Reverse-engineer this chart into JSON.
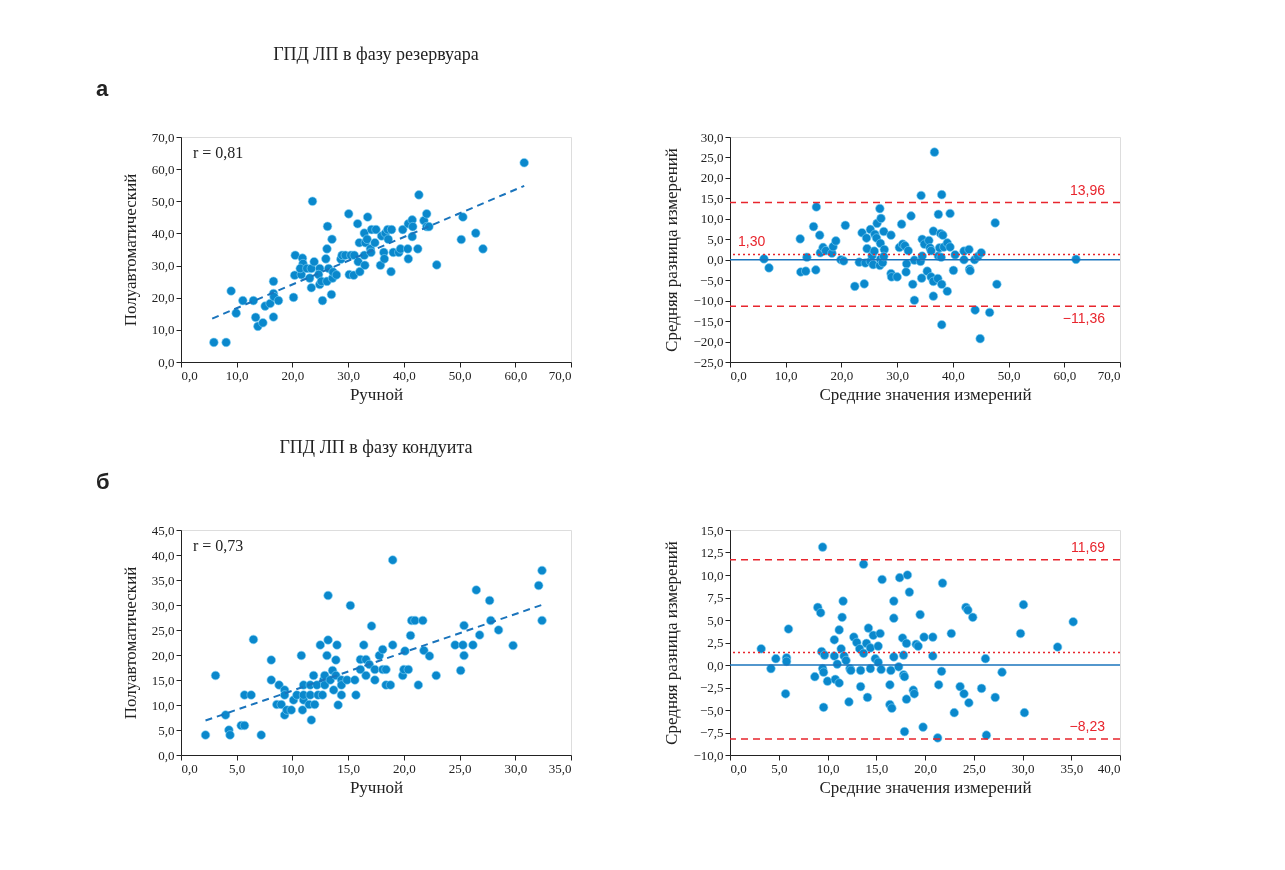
{
  "chart_data": [
    {
      "type": "scatter",
      "title": "ГПД ЛП в фазу резервуара",
      "xlabel": "Ручной",
      "ylabel": "Полуавтоматический",
      "annotations": [
        "а",
        "r = 0,81"
      ],
      "marker": "circle",
      "xlim": [
        0,
        70
      ],
      "ylim": [
        0,
        70
      ],
      "xticks": [
        {
          "value": 0,
          "label": "0,0"
        },
        {
          "value": 10,
          "label": "10,0"
        },
        {
          "value": 20,
          "label": "20,0"
        },
        {
          "value": 30,
          "label": "30,0"
        },
        {
          "value": 40,
          "label": "40,0"
        },
        {
          "value": 50,
          "label": "50,0"
        },
        {
          "value": 60,
          "label": "60,0"
        },
        {
          "value": 70,
          "label": "70,0"
        }
      ],
      "yticks": [
        {
          "value": 0,
          "label": "0,0"
        },
        {
          "value": 10,
          "label": "10,0"
        },
        {
          "value": 20,
          "label": "20,0"
        },
        {
          "value": 30,
          "label": "30,0"
        },
        {
          "value": 40,
          "label": "40,0"
        },
        {
          "value": 50,
          "label": "50,0"
        },
        {
          "value": 60,
          "label": "60,0"
        },
        {
          "value": 70,
          "label": "70,0"
        }
      ],
      "series": [
        {
          "color": "#0a88cc",
          "x": [
            5.9,
            8.1,
            9.0,
            9.9,
            11.1,
            13.0,
            13.4,
            13.8,
            14.7,
            15.1,
            16.0,
            16.6,
            16.6,
            16.7,
            16.6,
            17.5,
            20.2,
            20.5,
            20.4,
            21.8,
            21.9,
            21.6,
            21.4,
            22.6,
            23.4,
            23.1,
            23.4,
            23.6,
            23.9,
            24.9,
            24.7,
            24.9,
            25.2,
            25.4,
            26.0,
            26.2,
            26.3,
            26.2,
            26.5,
            27.1,
            27.0,
            27.2,
            27.3,
            27.9,
            28.7,
            28.9,
            29.5,
            30.1,
            30.2,
            30.5,
            31.1,
            31.0,
            31.7,
            31.8,
            32.0,
            32.1,
            32.9,
            32.9,
            33.0,
            33.1,
            33.5,
            33.4,
            34.0,
            34.1,
            34.2,
            34.8,
            35.0,
            35.8,
            36.0,
            36.4,
            36.5,
            36.7,
            37.1,
            37.2,
            37.8,
            37.7,
            38.1,
            39.1,
            39.4,
            39.8,
            40.8,
            40.7,
            40.8,
            41.5,
            41.6,
            41.5,
            42.5,
            42.7,
            43.6,
            44.1,
            44.1,
            44.5,
            45.9,
            50.3,
            50.6,
            52.9,
            54.2,
            61.6
          ],
          "values": [
            6.1,
            6.1,
            22.1,
            15.2,
            19.1,
            19.1,
            13.9,
            11.1,
            12.2,
            17.4,
            18.2,
            25.1,
            21.3,
            20.3,
            14.0,
            19.1,
            20.1,
            33.2,
            27.0,
            32.3,
            30.6,
            27.2,
            29.1,
            29.1,
            29.1,
            26.1,
            23.1,
            50.0,
            31.2,
            29.1,
            27.2,
            24.1,
            25.1,
            19.1,
            32.1,
            35.2,
            42.2,
            25.1,
            29.1,
            38.2,
            21.0,
            26.1,
            28.0,
            27.1,
            32.0,
            33.2,
            33.2,
            46.1,
            27.2,
            33.2,
            33.2,
            27.0,
            43.0,
            31.2,
            37.1,
            28.1,
            40.1,
            33.2,
            30.1,
            37.1,
            45.1,
            38.2,
            35.2,
            34.1,
            41.2,
            37.1,
            41.2,
            30.1,
            39.2,
            34.1,
            32.1,
            40.1,
            41.2,
            38.2,
            41.2,
            28.1,
            34.1,
            34.1,
            35.2,
            41.2,
            43.0,
            35.2,
            32.1,
            44.2,
            42.1,
            39.0,
            35.2,
            52.0,
            44.0,
            46.1,
            42.1,
            42.1,
            30.2,
            38.1,
            45.1,
            40.1,
            35.2,
            62.0
          ]
        },
        {
          "type": "line",
          "line_style": "dashed",
          "marker": "none",
          "color": "#1a74bc",
          "x": [
            5.6,
            61.6
          ],
          "values": [
            13.5,
            54.8
          ]
        }
      ]
    },
    {
      "type": "scatter",
      "xlabel": "Средние значения измерений",
      "ylabel": "Средняя разница измерений",
      "marker": "circle",
      "xlim": [
        0,
        70
      ],
      "ylim": [
        -25,
        30
      ],
      "xticks": [
        {
          "value": 0,
          "label": "0,0"
        },
        {
          "value": 10,
          "label": "10,0"
        },
        {
          "value": 20,
          "label": "20,0"
        },
        {
          "value": 30,
          "label": "30,0"
        },
        {
          "value": 40,
          "label": "40,0"
        },
        {
          "value": 50,
          "label": "50,0"
        },
        {
          "value": 60,
          "label": "60,0"
        },
        {
          "value": 70,
          "label": "70,0"
        }
      ],
      "yticks": [
        {
          "value": -25,
          "label": "−25,0"
        },
        {
          "value": -20,
          "label": "−20,0"
        },
        {
          "value": -15,
          "label": "−15,0"
        },
        {
          "value": -10,
          "label": "−10,0"
        },
        {
          "value": -5,
          "label": "−5,0"
        },
        {
          "value": 0,
          "label": "0,0"
        },
        {
          "value": 5,
          "label": "5,0"
        },
        {
          "value": 10,
          "label": "10,0"
        },
        {
          "value": 15,
          "label": "15,0"
        },
        {
          "value": 20,
          "label": "20,0"
        },
        {
          "value": 25,
          "label": "25,0"
        },
        {
          "value": 30,
          "label": "30,0"
        }
      ],
      "series": [
        {
          "color": "#0a88cc",
          "x": [
            6.1,
            7.0,
            12.6,
            12.7,
            13.6,
            13.8,
            15.0,
            15.4,
            15.5,
            16.1,
            16.2,
            16.7,
            17.2,
            18.3,
            18.5,
            19.0,
            19.9,
            20.4,
            20.7,
            22.4,
            23.2,
            23.7,
            24.1,
            24.3,
            24.5,
            24.6,
            25.2,
            25.2,
            25.5,
            25.7,
            25.9,
            26.0,
            26.3,
            26.4,
            26.9,
            26.9,
            27.0,
            27.1,
            27.0,
            27.4,
            27.6,
            27.7,
            27.6,
            28.9,
            28.9,
            29.0,
            30.0,
            30.4,
            30.8,
            31.0,
            31.4,
            31.7,
            31.6,
            32.0,
            32.5,
            32.8,
            33.1,
            33.1,
            34.2,
            34.3,
            34.4,
            34.5,
            34.5,
            34.9,
            35.4,
            35.7,
            35.9,
            36.1,
            36.1,
            36.5,
            36.5,
            36.5,
            36.7,
            37.3,
            37.4,
            37.4,
            37.6,
            37.8,
            37.9,
            38.0,
            38.0,
            38.0,
            38.2,
            38.4,
            39.0,
            39.0,
            39.5,
            39.5,
            40.1,
            40.4,
            42.0,
            42.0,
            42.9,
            43.0,
            43.1,
            43.9,
            44.0,
            44.5,
            45.1,
            44.9,
            46.6,
            47.6,
            47.9,
            62.1
          ],
          "values": [
            0.2,
            -2.0,
            5.1,
            -3.0,
            -2.8,
            0.6,
            8.1,
            -2.5,
            12.9,
            6.0,
            1.7,
            3.0,
            2.2,
            1.6,
            3.2,
            4.6,
            0.0,
            -0.3,
            8.4,
            -6.5,
            -0.6,
            6.6,
            -5.9,
            -0.8,
            5.3,
            2.7,
            7.4,
            -0.4,
            1.0,
            -1.2,
            2.1,
            6.2,
            5.3,
            8.9,
            12.5,
            -1.4,
            4.0,
            10.1,
            0.1,
            -0.7,
            6.9,
            2.5,
            0.8,
            6.0,
            -3.4,
            -4.2,
            -4.2,
            3.0,
            8.7,
            3.8,
            3.4,
            -1.0,
            -3.0,
            2.2,
            10.7,
            -6.0,
            -0.1,
            -9.9,
            -0.4,
            15.7,
            -4.5,
            5.0,
            0.9,
            3.8,
            -2.8,
            4.7,
            2.9,
            2.2,
            -4.2,
            7.0,
            -8.9,
            -5.3,
            26.3,
            -4.6,
            11.1,
            0.9,
            2.9,
            6.4,
            0.6,
            15.9,
            -6.0,
            -15.9,
            6.0,
            3.1,
            4.1,
            -7.7,
            11.3,
            3.1,
            -2.6,
            1.2,
            0.0,
            2.1,
            2.5,
            -2.3,
            -2.7,
            0.0,
            -12.3,
            0.8,
            1.7,
            -19.3,
            -12.9,
            9.0,
            -6.0,
            0.1
          ]
        }
      ],
      "ref_lines": [
        {
          "axis": "y",
          "value": 13.96,
          "label": "13,96",
          "color": "#e8252d",
          "line_style": "dashed"
        },
        {
          "axis": "y",
          "value": 1.3,
          "label": "1,30",
          "color": "#e8252d",
          "line_style": "dotted"
        },
        {
          "axis": "y",
          "value": 0,
          "label": null,
          "color": "#1a74bc",
          "line_style": "solid"
        },
        {
          "axis": "y",
          "value": -11.36,
          "label": "−11,36",
          "color": "#e8252d",
          "line_style": "dashed"
        }
      ]
    },
    {
      "type": "scatter",
      "title": "ГПД ЛП в фазу кондуита",
      "xlabel": "Ручной",
      "ylabel": "Полуавтоматический",
      "annotations": [
        "б",
        "r = 0,73"
      ],
      "marker": "circle",
      "xlim": [
        0,
        35
      ],
      "ylim": [
        0,
        45
      ],
      "xticks": [
        {
          "value": 0,
          "label": "0,0"
        },
        {
          "value": 5,
          "label": "5,0"
        },
        {
          "value": 10,
          "label": "10,0"
        },
        {
          "value": 15,
          "label": "15,0"
        },
        {
          "value": 20,
          "label": "20,0"
        },
        {
          "value": 25,
          "label": "25,0"
        },
        {
          "value": 30,
          "label": "30,0"
        },
        {
          "value": 35,
          "label": "35,0"
        }
      ],
      "yticks": [
        {
          "value": 0,
          "label": "0,0"
        },
        {
          "value": 5,
          "label": "5,0"
        },
        {
          "value": 10,
          "label": "10,0"
        },
        {
          "value": 15,
          "label": "15,0"
        },
        {
          "value": 20,
          "label": "20,0"
        },
        {
          "value": 25,
          "label": "25,0"
        },
        {
          "value": 30,
          "label": "30,0"
        },
        {
          "value": 35,
          "label": "35,0"
        },
        {
          "value": 40,
          "label": "40,0"
        },
        {
          "value": 45,
          "label": "45,0"
        }
      ],
      "series": [
        {
          "color": "#0a88cc",
          "x": [
            2.2,
            3.1,
            4.0,
            4.3,
            4.4,
            5.4,
            5.7,
            5.7,
            6.3,
            6.5,
            7.2,
            8.1,
            8.1,
            8.6,
            8.8,
            9.0,
            9.3,
            9.3,
            9.3,
            9.5,
            9.9,
            10.1,
            10.4,
            10.8,
            10.9,
            11.0,
            11.0,
            11.0,
            11.5,
            11.6,
            11.6,
            11.7,
            11.9,
            12.0,
            12.2,
            12.3,
            12.5,
            12.7,
            12.8,
            12.9,
            12.9,
            13.1,
            13.2,
            13.2,
            13.4,
            13.6,
            13.7,
            13.9,
            13.9,
            14.0,
            14.1,
            14.4,
            14.4,
            14.4,
            14.9,
            15.2,
            15.6,
            15.7,
            16.1,
            16.1,
            16.4,
            16.6,
            16.6,
            16.9,
            17.1,
            17.4,
            17.4,
            17.8,
            18.1,
            18.1,
            18.4,
            18.4,
            18.8,
            19.0,
            19.0,
            19.9,
            20.0,
            20.1,
            20.4,
            20.6,
            20.7,
            21.0,
            21.3,
            21.7,
            21.8,
            22.3,
            22.9,
            24.6,
            25.1,
            25.3,
            25.4,
            25.4,
            26.2,
            26.5,
            26.8,
            27.7,
            27.8,
            28.5,
            29.8,
            32.1,
            32.4,
            32.4
          ],
          "values": [
            4.0,
            15.9,
            8.0,
            5.0,
            4.0,
            5.9,
            5.9,
            12.0,
            12.0,
            23.1,
            4.0,
            19.0,
            15.0,
            10.1,
            14.0,
            10.1,
            13.0,
            12.0,
            8.0,
            9.0,
            9.0,
            11.0,
            12.0,
            19.9,
            9.0,
            11.0,
            14.0,
            12.0,
            10.1,
            12.0,
            14.0,
            7.0,
            15.9,
            10.1,
            14.0,
            12.0,
            22.0,
            12.0,
            15.0,
            14.0,
            15.9,
            19.9,
            23.0,
            31.9,
            15.0,
            16.9,
            13.0,
            15.9,
            19.0,
            22.0,
            10.0,
            15.0,
            14.0,
            12.0,
            15.0,
            29.9,
            15.0,
            12.0,
            19.1,
            17.1,
            22.0,
            15.9,
            19.1,
            18.1,
            25.8,
            17.1,
            15.0,
            19.9,
            21.1,
            17.1,
            17.1,
            14.0,
            14.0,
            22.0,
            39.0,
            15.9,
            17.1,
            20.8,
            17.1,
            23.9,
            26.9,
            26.9,
            14.0,
            26.9,
            20.9,
            19.8,
            15.9,
            22.0,
            16.9,
            22.0,
            19.9,
            25.9,
            22.0,
            33.0,
            24.0,
            30.9,
            26.9,
            25.0,
            21.9,
            33.9,
            36.9,
            26.9
          ]
        },
        {
          "type": "line",
          "line_style": "dashed",
          "marker": "none",
          "color": "#1a74bc",
          "x": [
            2.2,
            32.5
          ],
          "values": [
            6.9,
            30.1
          ]
        }
      ]
    },
    {
      "type": "scatter",
      "xlabel": "Средние значения измерений",
      "ylabel": "Средняя разница измерений",
      "marker": "circle",
      "xlim": [
        0,
        40
      ],
      "ylim": [
        -10,
        15
      ],
      "xticks": [
        {
          "value": 0,
          "label": "0,0"
        },
        {
          "value": 5,
          "label": "5,0"
        },
        {
          "value": 10,
          "label": "10,0"
        },
        {
          "value": 15,
          "label": "15,0"
        },
        {
          "value": 20,
          "label": "20,0"
        },
        {
          "value": 25,
          "label": "25,0"
        },
        {
          "value": 30,
          "label": "30,0"
        },
        {
          "value": 35,
          "label": "35,0"
        },
        {
          "value": 40,
          "label": "40,0"
        }
      ],
      "yticks": [
        {
          "value": -10,
          "label": "−10,0"
        },
        {
          "value": -7.5,
          "label": "−7,5"
        },
        {
          "value": -5,
          "label": "−5,0"
        },
        {
          "value": -2.5,
          "label": "−2,5"
        },
        {
          "value": 0,
          "label": "0,0"
        },
        {
          "value": 2.5,
          "label": "2,5"
        },
        {
          "value": 5,
          "label": "5,0"
        },
        {
          "value": 7.5,
          "label": "7,5"
        },
        {
          "value": 10,
          "label": "10,0"
        },
        {
          "value": 12.5,
          "label": "12,5"
        },
        {
          "value": 15,
          "label": "15,0"
        }
      ],
      "series": [
        {
          "color": "#0a88cc",
          "x": [
            3.2,
            4.2,
            4.7,
            5.7,
            5.8,
            5.8,
            6.0,
            8.7,
            9.0,
            9.3,
            9.4,
            9.5,
            9.6,
            9.6,
            9.5,
            9.7,
            10.0,
            10.7,
            10.7,
            10.8,
            11.0,
            11.2,
            11.2,
            11.4,
            11.5,
            11.6,
            11.7,
            11.9,
            12.2,
            12.3,
            12.4,
            12.7,
            13.0,
            13.3,
            13.4,
            13.4,
            13.7,
            13.7,
            14.0,
            14.1,
            14.2,
            14.4,
            14.4,
            14.7,
            14.9,
            15.2,
            15.2,
            15.4,
            15.5,
            15.6,
            16.4,
            16.5,
            16.4,
            16.6,
            16.8,
            16.8,
            16.8,
            17.3,
            17.4,
            17.7,
            17.8,
            17.8,
            17.9,
            17.9,
            18.1,
            18.1,
            18.2,
            18.4,
            18.8,
            18.9,
            19.1,
            19.3,
            19.5,
            19.8,
            19.9,
            20.8,
            20.8,
            21.3,
            21.4,
            21.7,
            21.8,
            22.7,
            23.0,
            23.6,
            24.0,
            24.2,
            24.4,
            24.5,
            24.9,
            25.8,
            26.2,
            26.3,
            27.2,
            27.9,
            29.8,
            30.1,
            30.2,
            33.6,
            35.2
          ],
          "values": [
            1.8,
            -0.4,
            0.7,
            -3.2,
            0.8,
            0.4,
            4.0,
            -1.3,
            6.4,
            5.8,
            1.5,
            -0.4,
            -0.8,
            -4.7,
            13.1,
            1.1,
            -1.8,
            2.8,
            1.0,
            -1.6,
            0.1,
            -2.0,
            3.9,
            1.8,
            5.3,
            7.1,
            1.0,
            0.5,
            -4.1,
            -0.4,
            -0.6,
            3.1,
            2.5,
            1.8,
            -0.6,
            -2.4,
            1.3,
            11.2,
            2.4,
            -3.6,
            4.1,
            1.9,
            -0.4,
            3.3,
            0.7,
            0.3,
            2.1,
            3.5,
            -0.5,
            9.5,
            -2.2,
            -0.6,
            -4.4,
            -4.8,
            0.9,
            7.1,
            5.2,
            -0.2,
            9.7,
            3.0,
            1.1,
            -1.1,
            -1.3,
            -7.4,
            -3.8,
            2.4,
            10.0,
            8.1,
            -2.8,
            -3.2,
            2.3,
            2.1,
            5.6,
            -6.9,
            3.1,
            3.1,
            1.0,
            -8.1,
            -2.2,
            -0.7,
            9.1,
            3.5,
            -5.3,
            -2.4,
            -3.2,
            6.4,
            6.1,
            -4.2,
            5.3,
            -2.6,
            0.7,
            -7.8,
            -3.6,
            -0.8,
            3.5,
            6.7,
            -5.3,
            2.0,
            4.8
          ]
        }
      ],
      "ref_lines": [
        {
          "axis": "y",
          "value": 11.69,
          "label": "11,69",
          "color": "#e8252d",
          "line_style": "dashed"
        },
        {
          "axis": "y",
          "value": 1.4,
          "label": null,
          "color": "#e8252d",
          "line_style": "dotted"
        },
        {
          "axis": "y",
          "value": 0,
          "label": null,
          "color": "#1a74bc",
          "line_style": "solid"
        },
        {
          "axis": "y",
          "value": -8.23,
          "label": "−8,23",
          "color": "#e8252d",
          "line_style": "dashed"
        }
      ]
    }
  ]
}
